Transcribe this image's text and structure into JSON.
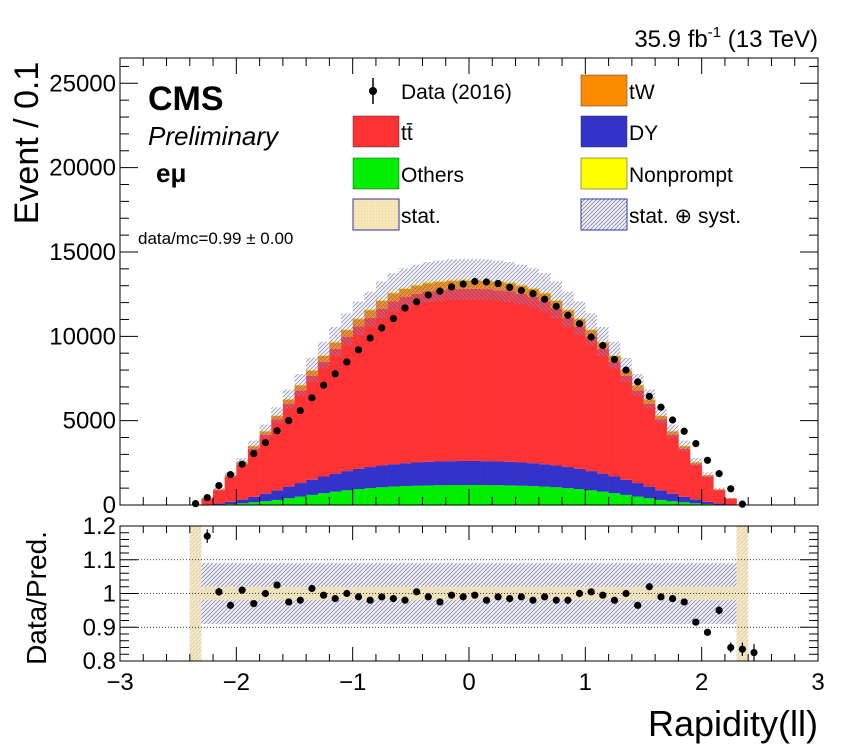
{
  "header": {
    "lumi_value": "35.9 fb",
    "lumi_exp": "-1",
    "lumi_energy": " (13 TeV)"
  },
  "labels": {
    "cms": "CMS",
    "preliminary": "Preliminary",
    "channel": "eμ",
    "data_mc": "data/mc=0.99 ± 0.00"
  },
  "legend": {
    "data": "Data (2016)",
    "tw": "tW",
    "ttbar": "tt̄",
    "dy": "DY",
    "others": "Others",
    "nonprompt": "Nonprompt",
    "stat": "stat.",
    "statsyst": "stat. ⊕ syst."
  },
  "chart_data": [
    {
      "type": "area",
      "ylabel": "Event / 0.1",
      "ylim": [
        0,
        26500
      ],
      "y_ticks": [
        "0",
        "5000",
        "10000",
        "15000",
        "20000",
        "25000"
      ],
      "x_range": [
        -3,
        3
      ],
      "bin_edges_range": [
        -2.4,
        2.4
      ],
      "bin_width": 0.1,
      "colors": {
        "ttbar": "#ff3333",
        "tw": "#ff8c00",
        "dy": "#3333cc",
        "others": "#00ee00",
        "nonprompt": "#ffff00",
        "stat": "#f5deb3",
        "statsyst": "#9999cc"
      },
      "series": [
        {
          "name": "Others",
          "values": [
            2,
            10,
            25,
            60,
            100,
            160,
            220,
            300,
            400,
            500,
            600,
            700,
            790,
            870,
            940,
            1000,
            1050,
            1090,
            1120,
            1140,
            1160,
            1170,
            1180,
            1185,
            1185,
            1180,
            1170,
            1160,
            1140,
            1120,
            1090,
            1050,
            1000,
            940,
            870,
            790,
            700,
            600,
            500,
            400,
            300,
            220,
            160,
            100,
            60,
            25,
            10,
            2
          ]
        },
        {
          "name": "DY",
          "values": [
            3,
            20,
            60,
            130,
            220,
            330,
            450,
            570,
            690,
            800,
            900,
            990,
            1070,
            1140,
            1200,
            1250,
            1290,
            1330,
            1360,
            1380,
            1400,
            1410,
            1420,
            1425,
            1425,
            1420,
            1410,
            1400,
            1380,
            1360,
            1330,
            1290,
            1250,
            1200,
            1140,
            1070,
            990,
            900,
            800,
            690,
            570,
            450,
            330,
            220,
            130,
            60,
            20,
            3
          ]
        },
        {
          "name": "tt̄",
          "values": [
            10,
            350,
            800,
            1500,
            2100,
            2850,
            3500,
            4200,
            4900,
            5500,
            6150,
            6800,
            7400,
            7950,
            8450,
            8850,
            9300,
            9650,
            9850,
            10000,
            10100,
            10150,
            10200,
            10200,
            10200,
            10200,
            10150,
            10100,
            10000,
            9850,
            9650,
            9300,
            8850,
            8450,
            7950,
            7400,
            6800,
            6150,
            5500,
            4900,
            4200,
            3500,
            2850,
            2100,
            1500,
            800,
            350,
            10
          ]
        },
        {
          "name": "tW",
          "values": [
            0,
            20,
            45,
            80,
            115,
            150,
            190,
            220,
            260,
            290,
            320,
            355,
            380,
            410,
            430,
            450,
            460,
            475,
            480,
            485,
            490,
            490,
            490,
            490,
            490,
            490,
            490,
            490,
            485,
            480,
            475,
            460,
            450,
            430,
            410,
            380,
            355,
            320,
            290,
            260,
            220,
            190,
            150,
            115,
            80,
            45,
            20,
            0
          ]
        },
        {
          "name": "Nonprompt",
          "values": [
            0,
            2,
            5,
            8,
            12,
            16,
            20,
            24,
            28,
            32,
            36,
            40,
            44,
            48,
            52,
            56,
            60,
            62,
            64,
            66,
            68,
            70,
            70,
            70,
            70,
            70,
            70,
            68,
            66,
            64,
            62,
            60,
            56,
            52,
            48,
            44,
            40,
            36,
            32,
            28,
            24,
            20,
            16,
            12,
            8,
            5,
            2,
            0
          ]
        }
      ],
      "data_points": [
        80,
        440,
        1150,
        1800,
        2420,
        3050,
        3700,
        4400,
        5000,
        5600,
        6350,
        7100,
        7780,
        8480,
        9200,
        9900,
        10500,
        11050,
        11680,
        12050,
        12450,
        12680,
        12930,
        13100,
        13250,
        13220,
        13130,
        12900,
        12720,
        12530,
        12200,
        11780,
        11250,
        10750,
        9960,
        9450,
        8630,
        8000,
        7300,
        6440,
        5800,
        5040,
        4370,
        3640,
        2650,
        1860,
        960,
        50
      ],
      "syst_fraction": 0.09
    },
    {
      "type": "scatter",
      "xlabel": "Rapidity(ll)",
      "ylabel": "Data/Pred.",
      "ylim": [
        0.8,
        1.2
      ],
      "y_ticks": [
        "0.8",
        "0.9",
        "1",
        "1.1",
        "1.2"
      ],
      "x_ticks": [
        "−3",
        "−2",
        "−1",
        "0",
        "1",
        "2",
        "3"
      ],
      "x_range": [
        -3,
        3
      ],
      "grid_lines": [
        0.9,
        1.0,
        1.1
      ],
      "ratio_points": [
        {
          "x": -2.25,
          "y": 1.17,
          "err": 0.02
        },
        {
          "x": -2.15,
          "y": 1.005,
          "err": 0.012
        },
        {
          "x": -2.05,
          "y": 0.965,
          "err": 0.01
        },
        {
          "x": -1.95,
          "y": 1.01,
          "err": 0.009
        },
        {
          "x": -1.85,
          "y": 0.97,
          "err": 0.008
        },
        {
          "x": -1.75,
          "y": 1.0,
          "err": 0.007
        },
        {
          "x": -1.65,
          "y": 1.025,
          "err": 0.007
        },
        {
          "x": -1.55,
          "y": 0.975,
          "err": 0.006
        },
        {
          "x": -1.45,
          "y": 0.98,
          "err": 0.006
        },
        {
          "x": -1.35,
          "y": 1.015,
          "err": 0.006
        },
        {
          "x": -1.25,
          "y": 0.995,
          "err": 0.006
        },
        {
          "x": -1.15,
          "y": 0.985,
          "err": 0.005
        },
        {
          "x": -1.05,
          "y": 1.0,
          "err": 0.005
        },
        {
          "x": -0.95,
          "y": 0.99,
          "err": 0.005
        },
        {
          "x": -0.85,
          "y": 0.98,
          "err": 0.005
        },
        {
          "x": -0.75,
          "y": 0.99,
          "err": 0.005
        },
        {
          "x": -0.65,
          "y": 0.985,
          "err": 0.005
        },
        {
          "x": -0.55,
          "y": 0.98,
          "err": 0.005
        },
        {
          "x": -0.45,
          "y": 1.005,
          "err": 0.005
        },
        {
          "x": -0.35,
          "y": 0.99,
          "err": 0.005
        },
        {
          "x": -0.25,
          "y": 0.975,
          "err": 0.005
        },
        {
          "x": -0.15,
          "y": 0.995,
          "err": 0.005
        },
        {
          "x": -0.05,
          "y": 0.99,
          "err": 0.005
        },
        {
          "x": 0.05,
          "y": 0.995,
          "err": 0.005
        },
        {
          "x": 0.15,
          "y": 0.98,
          "err": 0.005
        },
        {
          "x": 0.25,
          "y": 0.99,
          "err": 0.005
        },
        {
          "x": 0.35,
          "y": 0.985,
          "err": 0.005
        },
        {
          "x": 0.45,
          "y": 0.99,
          "err": 0.005
        },
        {
          "x": 0.55,
          "y": 0.98,
          "err": 0.005
        },
        {
          "x": 0.65,
          "y": 0.99,
          "err": 0.005
        },
        {
          "x": 0.75,
          "y": 0.98,
          "err": 0.005
        },
        {
          "x": 0.85,
          "y": 0.98,
          "err": 0.005
        },
        {
          "x": 0.95,
          "y": 1.0,
          "err": 0.005
        },
        {
          "x": 1.05,
          "y": 1.005,
          "err": 0.005
        },
        {
          "x": 1.15,
          "y": 0.995,
          "err": 0.005
        },
        {
          "x": 1.25,
          "y": 0.98,
          "err": 0.006
        },
        {
          "x": 1.35,
          "y": 1.0,
          "err": 0.006
        },
        {
          "x": 1.45,
          "y": 0.965,
          "err": 0.006
        },
        {
          "x": 1.55,
          "y": 1.02,
          "err": 0.006
        },
        {
          "x": 1.65,
          "y": 0.99,
          "err": 0.007
        },
        {
          "x": 1.75,
          "y": 0.985,
          "err": 0.007
        },
        {
          "x": 1.85,
          "y": 0.975,
          "err": 0.008
        },
        {
          "x": 1.95,
          "y": 0.915,
          "err": 0.009
        },
        {
          "x": 2.05,
          "y": 0.885,
          "err": 0.01
        },
        {
          "x": 2.15,
          "y": 0.95,
          "err": 0.012
        },
        {
          "x": 2.25,
          "y": 0.84,
          "err": 0.015
        },
        {
          "x": 2.35,
          "y": 0.835,
          "err": 0.02
        },
        {
          "x": 2.45,
          "y": 0.825,
          "err": 0.025
        }
      ],
      "stat_band_fraction": 0.02,
      "statsyst_band_fraction": 0.09
    }
  ]
}
